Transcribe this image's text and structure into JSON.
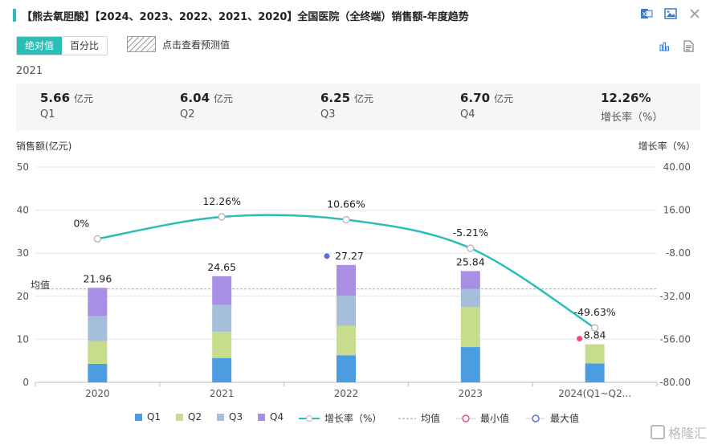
{
  "header": {
    "title": "【熊去氧胆酸】【2024、2023、2022、2021、2020】全国医院（全终端）销售额-年度趋势",
    "accent_color": "#2bbdb8",
    "icons": [
      "excel-export-icon",
      "image-export-icon",
      "close-icon"
    ]
  },
  "toolbar": {
    "toggle_absolute": "绝对值",
    "toggle_percent": "百分比",
    "forecast_label": "点击查看预测值",
    "view_icons": [
      "bar-chart-icon",
      "table-doc-icon"
    ]
  },
  "summary": {
    "year": "2021",
    "items": [
      {
        "value": "5.66",
        "unit": "亿元",
        "label": "Q1"
      },
      {
        "value": "6.04",
        "unit": "亿元",
        "label": "Q2"
      },
      {
        "value": "6.25",
        "unit": "亿元",
        "label": "Q3"
      },
      {
        "value": "6.70",
        "unit": "亿元",
        "label": "Q4"
      },
      {
        "value": "12.26%",
        "unit": "",
        "label": "增长率（%）"
      }
    ]
  },
  "chart_data": {
    "type": "bar",
    "stacked": true,
    "categories": [
      "2020",
      "2021",
      "2022",
      "2023",
      "2024(Q1~Q2..."
    ],
    "ylabel": "销售额(亿元)",
    "ylabel_right": "增长率（%）",
    "ylim": [
      0,
      50
    ],
    "yticks": [
      "0",
      "10",
      "20",
      "30",
      "40",
      "50"
    ],
    "ylim_right": [
      -80,
      40
    ],
    "yticks_right": [
      "-80.00",
      "-56.00",
      "-32.00",
      "-8.00",
      "16.00",
      "40.00"
    ],
    "series": [
      {
        "name": "Q1",
        "color": "#4a9de0",
        "values": [
          4.3,
          5.66,
          6.3,
          8.2,
          4.4
        ]
      },
      {
        "name": "Q2",
        "color": "#c8dc8e",
        "values": [
          5.3,
          6.04,
          6.8,
          9.3,
          4.44
        ]
      },
      {
        "name": "Q3",
        "color": "#a5bfdb",
        "values": [
          5.8,
          6.25,
          7.0,
          4.2,
          null
        ]
      },
      {
        "name": "Q4",
        "color": "#a98ee6",
        "values": [
          6.56,
          6.7,
          7.17,
          4.14,
          null
        ]
      }
    ],
    "totals": [
      "21.96",
      "24.65",
      "27.27",
      "25.84",
      "8.84"
    ],
    "growth": {
      "name": "增长率（%）",
      "color": "#2bbdb8",
      "values": [
        0,
        12.26,
        10.66,
        -5.21,
        -49.63
      ],
      "labels": [
        "0%",
        "12.26%",
        "10.66%",
        "-5.21%",
        "-49.63%"
      ]
    },
    "average": {
      "name": "均值",
      "label": "均值",
      "value": 21.7
    },
    "min": {
      "name": "最小值",
      "color": "#e84f7f",
      "index": 4
    },
    "max": {
      "name": "最大值",
      "color": "#5b6fe0",
      "index": 2
    },
    "grid": true,
    "legend_position": "bottom"
  },
  "watermark": "格隆汇"
}
